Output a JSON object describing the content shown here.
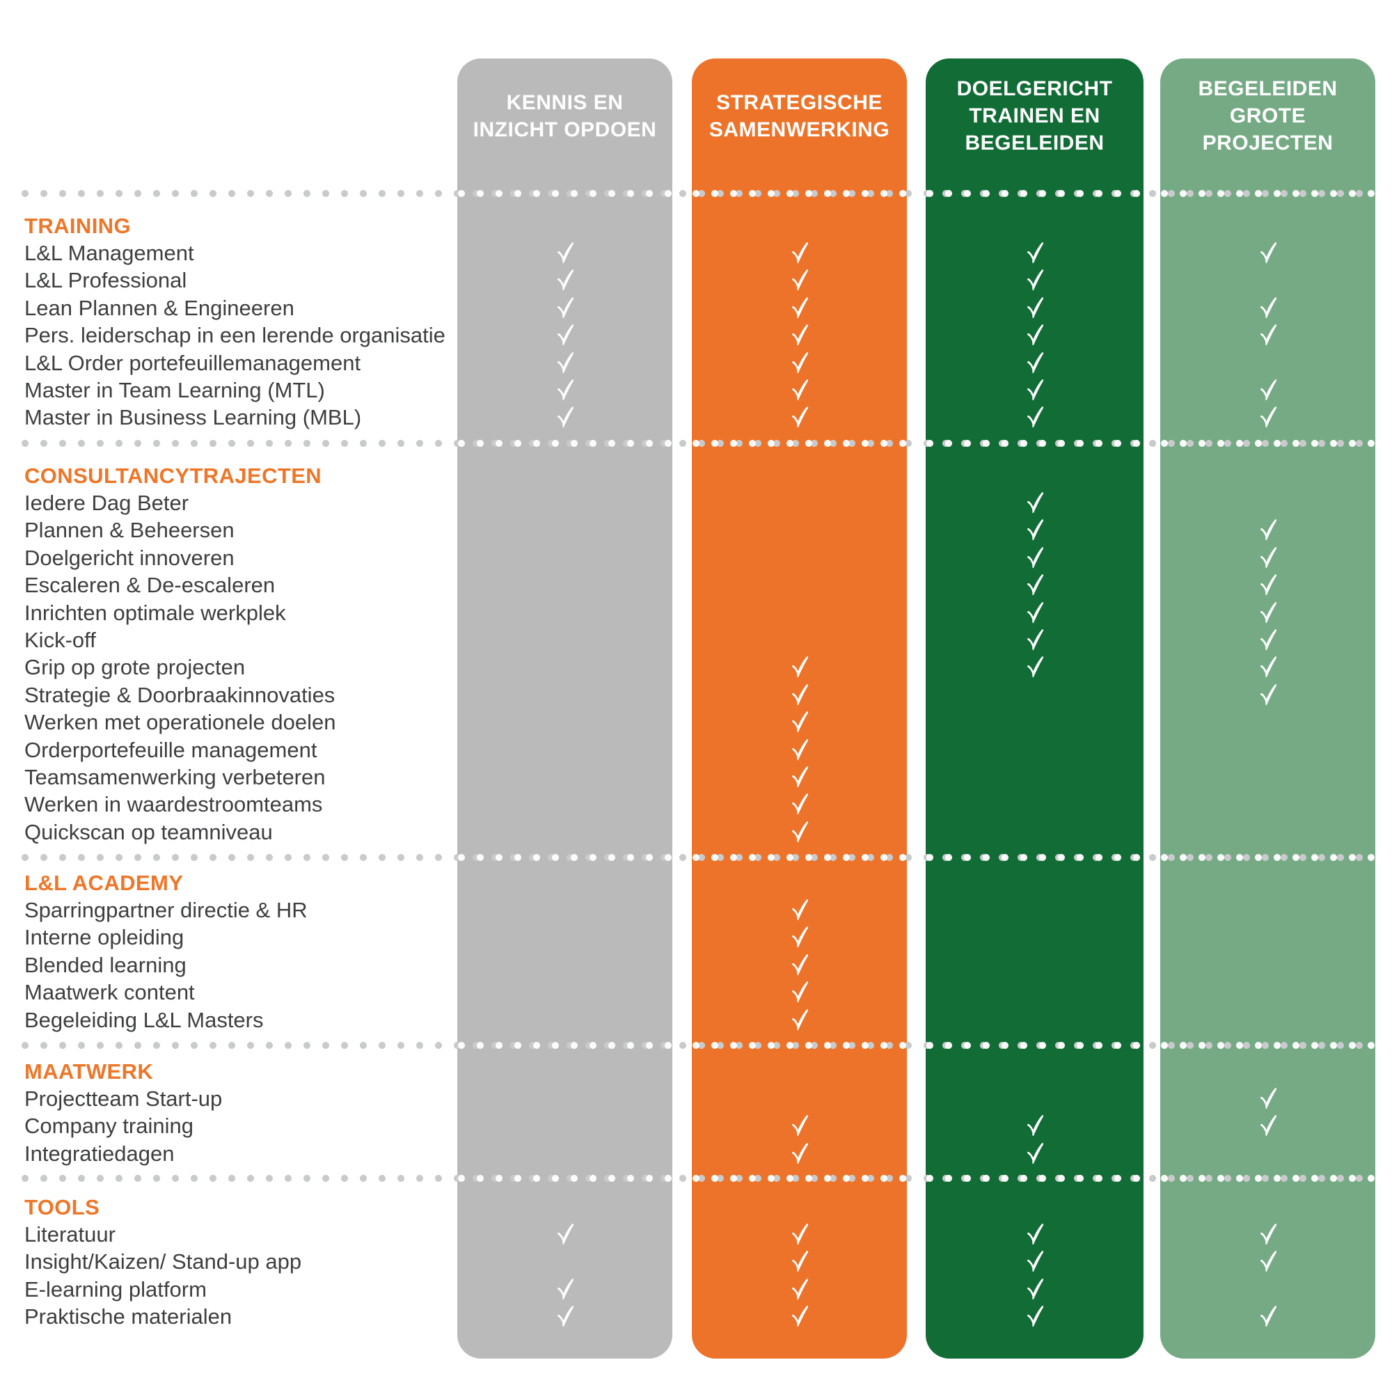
{
  "chart_data": {
    "type": "table",
    "title": "",
    "legend_position": "top",
    "check_symbol": "check-mark",
    "columns": [
      {
        "id": "kennis-en-inzicht-opdoen",
        "label": "KENNIS EN\nINZICHT OPDOEN",
        "color": "#bababb",
        "text_color": "#ffffff"
      },
      {
        "id": "strategische-samenwerking",
        "label": "STRATEGISCHE\nSAMENWERKING",
        "color": "#ec7329",
        "text_color": "#ffffff"
      },
      {
        "id": "doelgericht-trainen-en-begeleiden",
        "label": "DOELGERICHT\nTRAINEN EN\nBEGELEIDEN",
        "color": "#116c36",
        "text_color": "#ffffff"
      },
      {
        "id": "begeleiden-grote-projecten",
        "label": "BEGELEIDEN\nGROTE\nPROJECTEN",
        "color": "#75aa85",
        "text_color": "#ffffff"
      }
    ],
    "sections": [
      {
        "label": "TRAINING",
        "rows": [
          {
            "label": "L&L Management",
            "checks": [
              1,
              1,
              1,
              1
            ]
          },
          {
            "label": "L&L Professional",
            "checks": [
              1,
              1,
              1,
              0
            ]
          },
          {
            "label": "Lean Plannen & Engineeren",
            "checks": [
              1,
              1,
              1,
              1
            ]
          },
          {
            "label": "Pers. leiderschap in een lerende organisatie",
            "checks": [
              1,
              1,
              1,
              1
            ]
          },
          {
            "label": "L&L Order portefeuillemanagement",
            "checks": [
              1,
              1,
              1,
              0
            ]
          },
          {
            "label": "Master in Team Learning (MTL)",
            "checks": [
              1,
              1,
              1,
              1
            ]
          },
          {
            "label": "Master in Business Learning (MBL)",
            "checks": [
              1,
              1,
              1,
              1
            ]
          }
        ]
      },
      {
        "label": "CONSULTANCYTRAJECTEN",
        "rows": [
          {
            "label": "Iedere Dag Beter",
            "checks": [
              0,
              0,
              1,
              0
            ]
          },
          {
            "label": "Plannen & Beheersen",
            "checks": [
              0,
              0,
              1,
              1
            ]
          },
          {
            "label": "Doelgericht innoveren",
            "checks": [
              0,
              0,
              1,
              1
            ]
          },
          {
            "label": "Escaleren & De-escaleren",
            "checks": [
              0,
              0,
              1,
              1
            ]
          },
          {
            "label": "Inrichten optimale werkplek",
            "checks": [
              0,
              0,
              1,
              1
            ]
          },
          {
            "label": "Kick-off",
            "checks": [
              0,
              0,
              1,
              1
            ]
          },
          {
            "label": "Grip op grote projecten",
            "checks": [
              0,
              1,
              1,
              1
            ]
          },
          {
            "label": "Strategie & Doorbraakinnovaties",
            "checks": [
              0,
              1,
              0,
              1
            ]
          },
          {
            "label": "Werken met operationele doelen",
            "checks": [
              0,
              1,
              0,
              0
            ]
          },
          {
            "label": "Orderportefeuille management",
            "checks": [
              0,
              1,
              0,
              0
            ]
          },
          {
            "label": "Teamsamenwerking verbeteren",
            "checks": [
              0,
              1,
              0,
              0
            ]
          },
          {
            "label": "Werken in waardestroomteams",
            "checks": [
              0,
              1,
              0,
              0
            ]
          },
          {
            "label": "Quickscan op teamniveau",
            "checks": [
              0,
              1,
              0,
              0
            ]
          }
        ]
      },
      {
        "label": "L&L ACADEMY",
        "rows": [
          {
            "label": "Sparringpartner directie & HR",
            "checks": [
              0,
              1,
              0,
              0
            ]
          },
          {
            "label": "Interne opleiding",
            "checks": [
              0,
              1,
              0,
              0
            ]
          },
          {
            "label": "Blended learning",
            "checks": [
              0,
              1,
              0,
              0
            ]
          },
          {
            "label": "Maatwerk content",
            "checks": [
              0,
              1,
              0,
              0
            ]
          },
          {
            "label": "Begeleiding L&L Masters",
            "checks": [
              0,
              1,
              0,
              0
            ]
          }
        ]
      },
      {
        "label": "MAATWERK",
        "rows": [
          {
            "label": "Projectteam Start-up",
            "checks": [
              0,
              0,
              0,
              1
            ]
          },
          {
            "label": "Company training",
            "checks": [
              0,
              1,
              1,
              1
            ]
          },
          {
            "label": "Integratiedagen",
            "checks": [
              0,
              1,
              1,
              0
            ]
          }
        ]
      },
      {
        "label": "TOOLS",
        "rows": [
          {
            "label": "Literatuur",
            "checks": [
              1,
              1,
              1,
              1
            ]
          },
          {
            "label": "Insight/Kaizen/ Stand-up app",
            "checks": [
              0,
              1,
              1,
              1
            ]
          },
          {
            "label": "E-learning platform",
            "checks": [
              1,
              1,
              1,
              0
            ]
          },
          {
            "label": "Praktische materialen",
            "checks": [
              1,
              1,
              1,
              1
            ]
          }
        ]
      }
    ],
    "colors": {
      "section_title": "#ee7628",
      "row_text": "#3d3e40",
      "check": "#ffffff",
      "divider_dot_on_white": "#c9cacb",
      "divider_dot_on_column": "#ffffff",
      "background": "#ffffff"
    }
  }
}
